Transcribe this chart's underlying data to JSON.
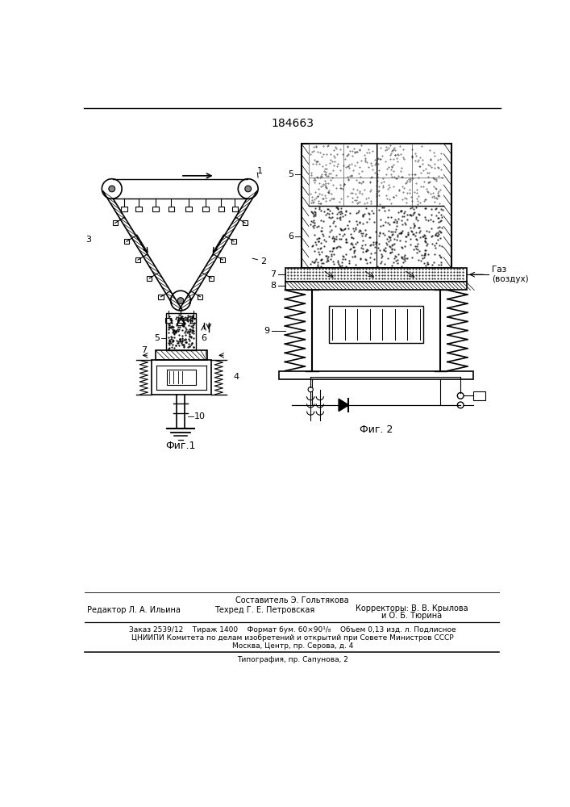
{
  "patent_number": "184663",
  "bg_color": "#ffffff",
  "line_color": "#000000",
  "fig_width": 7.07,
  "fig_height": 10.0,
  "footer_sestavitel": "Составитель Э. Гольтякова",
  "footer_redaktor": "Редактор Л. А. Ильина",
  "footer_tekhred": "Техред Г. Е. Петровская",
  "footer_korrektory": "Корректоры: В. В. Крылова",
  "footer_korrektory2": "и О. Б. Тюрина",
  "footer_zakaz": "Заказ 2539/12    Тираж 1400    Формат бум. 60×90¹/₈    Объем 0,13 изд. л. Подлисное",
  "footer_tsniipi": "ЦНИИПИ Комитета по делам изобретений и открытий при Совете Министров СССР",
  "footer_moskva": "Москва, Центр, пр. Серова, д. 4",
  "footer_tipografia": "Типография, пр. Сапунова, 2",
  "fig1_label": "Фиг.1",
  "fig2_label": "Фиг. 2",
  "label_gaz": "Газ\n(воздух)"
}
